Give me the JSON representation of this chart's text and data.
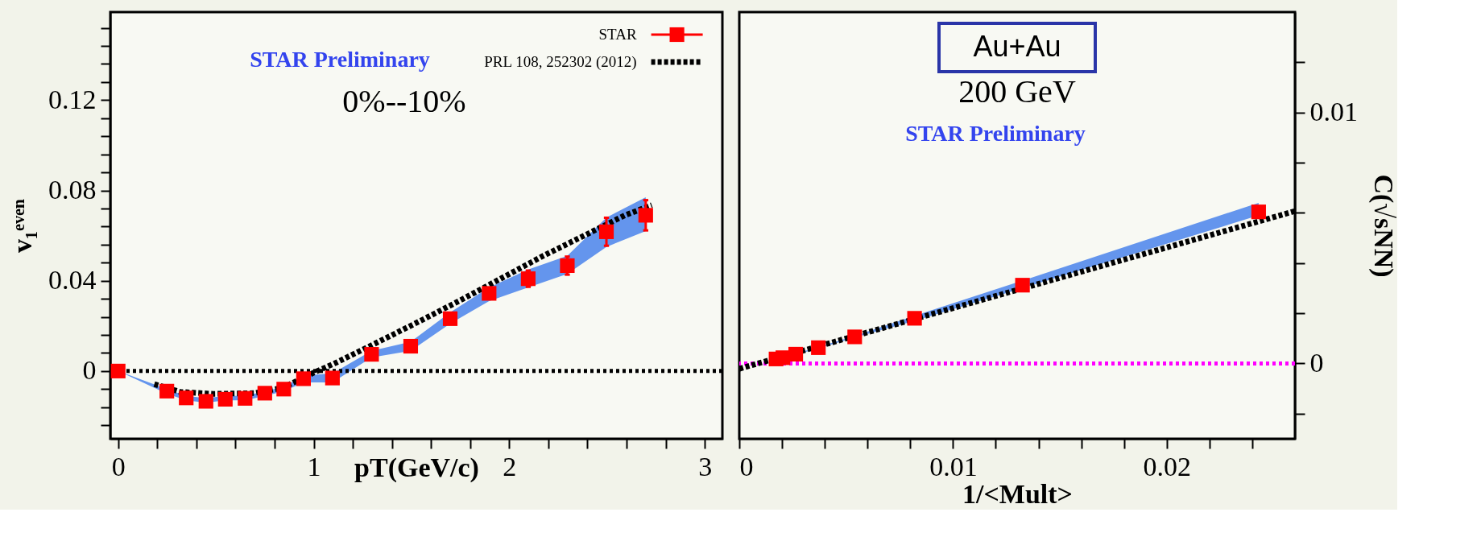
{
  "chart_data": [
    {
      "type": "scatter",
      "xlabel": "pT(GeV/c)",
      "ylabel": "v₁ᵉᵛᵉⁿ",
      "legend": "top right",
      "annotations": [
        "STAR Preliminary",
        "0%--10%"
      ],
      "xlim": [
        -0.04,
        3.09
      ],
      "ylim": [
        -0.03,
        0.159
      ],
      "xticks": [
        0,
        {
          "value": 0.2,
          "label": null
        },
        {
          "value": 0.4,
          "label": null
        },
        {
          "value": 0.6,
          "label": null
        },
        {
          "value": 0.8,
          "label": null
        },
        1,
        {
          "value": 1.2,
          "label": null
        },
        {
          "value": 1.4,
          "label": null
        },
        {
          "value": 1.6,
          "label": null
        },
        {
          "value": 1.8,
          "label": null
        },
        2,
        {
          "value": 2.2,
          "label": null
        },
        {
          "value": 2.4,
          "label": null
        },
        {
          "value": 2.6,
          "label": null
        },
        {
          "value": 2.8,
          "label": null
        },
        3
      ],
      "yticks": [
        {
          "value": -0.024,
          "label": null
        },
        {
          "value": -0.016,
          "label": null
        },
        {
          "value": -0.008,
          "label": null
        },
        0,
        {
          "value": 0.008,
          "label": null
        },
        {
          "value": 0.016,
          "label": null
        },
        {
          "value": 0.024,
          "label": null
        },
        {
          "value": 0.032,
          "label": null
        },
        0.04,
        {
          "value": 0.048,
          "label": null
        },
        {
          "value": 0.056,
          "label": null
        },
        {
          "value": 0.064,
          "label": null
        },
        {
          "value": 0.072,
          "label": null
        },
        0.08,
        {
          "value": 0.088,
          "label": null
        },
        {
          "value": 0.096,
          "label": null
        },
        {
          "value": 0.104,
          "label": null
        },
        {
          "value": 0.112,
          "label": null
        },
        0.12,
        {
          "value": 0.128,
          "label": null
        },
        {
          "value": 0.136,
          "label": null
        },
        {
          "value": 0.144,
          "label": null
        },
        {
          "value": 0.152,
          "label": null
        }
      ],
      "ref_lines": [
        {
          "axis": "y",
          "value": 0,
          "color": "#000000",
          "line_style": "dotted"
        }
      ],
      "series": [
        {
          "name": "STAR",
          "type": "scatter",
          "marker": "square",
          "color": "#ff0000",
          "x": [
            0,
            0.249,
            0.348,
            0.449,
            0.548,
            0.649,
            0.75,
            0.847,
            0.948,
            1.096,
            1.296,
            1.496,
            1.698,
            1.897,
            2.097,
            2.297,
            2.497,
            2.698
          ],
          "values": [
            0,
            -0.0089,
            -0.0119,
            -0.0134,
            -0.0125,
            -0.0121,
            -0.0098,
            -0.008,
            -0.0034,
            -0.0031,
            0.0074,
            0.011,
            0.0232,
            0.0344,
            0.0409,
            0.0467,
            0.0617,
            0.069
          ],
          "errors": [
            null,
            null,
            null,
            null,
            null,
            null,
            null,
            null,
            null,
            null,
            null,
            null,
            null,
            null,
            0.0036,
            0.004,
            0.0062,
            0.0067
          ],
          "lower": [
            0,
            -0.01,
            -0.013,
            -0.014,
            -0.013,
            -0.013,
            -0.011,
            -0.009,
            -0.005,
            -0.005,
            0.006,
            0.009,
            0.021,
            0.031,
            0.037,
            0.043,
            0.055,
            0.062
          ],
          "upper": [
            0,
            -0.008,
            -0.011,
            -0.012,
            -0.011,
            -0.011,
            -0.009,
            -0.007,
            -0.002,
            -0.001,
            0.009,
            0.013,
            0.026,
            0.037,
            0.045,
            0.051,
            0.068,
            0.077
          ]
        },
        {
          "name": "PRL 108, 252302 (2012)",
          "type": "line",
          "line_style": "dashed",
          "color": "#000000",
          "x": [
            0.185,
            0.316,
            0.485,
            0.695,
            0.843,
            1.0,
            1.117,
            1.328,
            1.538,
            1.749,
            1.96,
            2.171,
            2.381,
            2.592,
            2.729
          ],
          "values": [
            -0.0058,
            -0.0092,
            -0.0101,
            -0.0098,
            -0.0074,
            -0.0007,
            0.0038,
            0.0128,
            0.0219,
            0.0313,
            0.0411,
            0.0509,
            0.0599,
            0.069,
            0.0735
          ]
        }
      ]
    },
    {
      "type": "scatter",
      "xlabel": "1/<Mult>",
      "y2label": "C(√sNN)",
      "annotations": [
        "Au+Au",
        "200 GeV",
        "STAR Preliminary"
      ],
      "xlim": [
        0,
        0.026
      ],
      "y2lim": [
        -0.003,
        0.014
      ],
      "xticks": [
        0,
        {
          "value": 0.002,
          "label": null
        },
        {
          "value": 0.004,
          "label": null
        },
        {
          "value": 0.006,
          "label": null
        },
        {
          "value": 0.008,
          "label": null
        },
        0.01,
        {
          "value": 0.012,
          "label": null
        },
        {
          "value": 0.014,
          "label": null
        },
        {
          "value": 0.016,
          "label": null
        },
        {
          "value": 0.018,
          "label": null
        },
        0.02,
        {
          "value": 0.022,
          "label": null
        },
        {
          "value": 0.024,
          "label": null
        }
      ],
      "y2ticks": [
        {
          "value": -0.002,
          "label": null
        },
        0,
        {
          "value": 0.002,
          "label": null
        },
        {
          "value": 0.004,
          "label": null
        },
        {
          "value": 0.006,
          "label": null
        },
        {
          "value": 0.008,
          "label": null
        },
        0.01,
        {
          "value": 0.012,
          "label": null
        }
      ],
      "ref_lines": [
        {
          "axis": "y2",
          "value": 0,
          "color": "#ff00ff",
          "line_style": "dotted"
        }
      ],
      "series": [
        {
          "type": "scatter",
          "axis": "y2",
          "marker": "square",
          "color": "#ff0000",
          "x": [
            0.00172,
            0.00204,
            0.00264,
            0.0037,
            0.0054,
            0.0082,
            0.01325,
            0.0243
          ],
          "values": [
            0.00018,
            0.00023,
            0.00037,
            0.00063,
            0.00106,
            0.0018,
            0.00312,
            0.00604
          ],
          "lower": [
            0.00017,
            0.00022,
            0.00035,
            0.0006,
            0.00103,
            0.0017,
            0.003,
            0.0059
          ],
          "upper": [
            0.00019,
            0.00024,
            0.00039,
            0.00066,
            0.0011,
            0.0019,
            0.0033,
            0.0064
          ]
        },
        {
          "type": "line",
          "axis": "y2",
          "line_style": "dashed",
          "color": "#000000",
          "x": [
            0,
            0.026
          ],
          "values": [
            -0.00021,
            0.00607
          ]
        }
      ]
    }
  ]
}
